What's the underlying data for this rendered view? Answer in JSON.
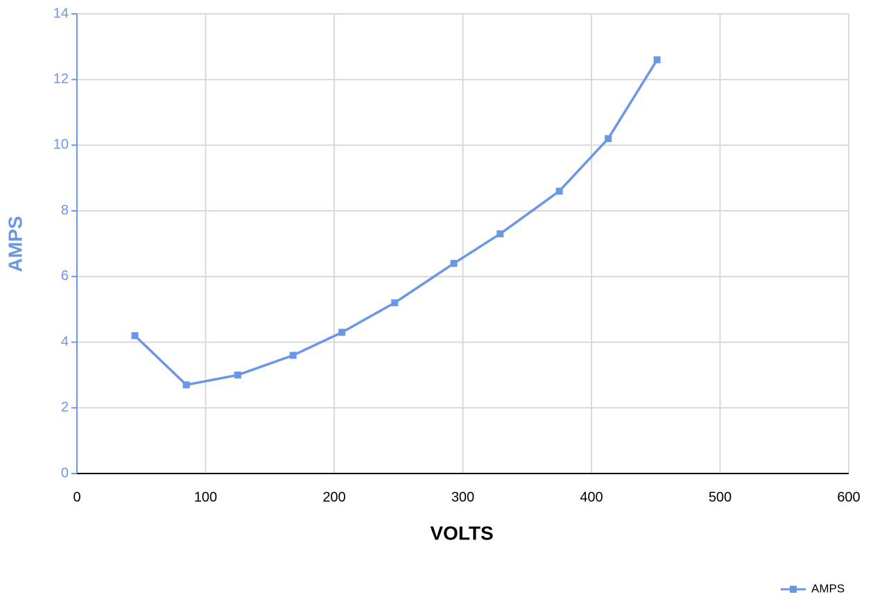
{
  "chart_data": {
    "type": "line",
    "x_label": "VOLTS",
    "y_label": "AMPS",
    "x": [
      45,
      85,
      125,
      168,
      206,
      247,
      293,
      329,
      375,
      413,
      451
    ],
    "series": [
      {
        "name": "AMPS",
        "color": "#6a96e8",
        "values": [
          4.2,
          2.7,
          3.0,
          3.6,
          4.3,
          5.2,
          6.4,
          7.3,
          8.6,
          10.2,
          12.6
        ]
      }
    ],
    "xlim": [
      0,
      600
    ],
    "xticks": [
      0,
      100,
      200,
      300,
      400,
      500,
      600
    ],
    "ylim": [
      0,
      14
    ],
    "yticks": [
      0,
      2,
      4,
      6,
      8,
      10,
      12,
      14
    ],
    "grid": true,
    "legend": "bottom-right"
  }
}
